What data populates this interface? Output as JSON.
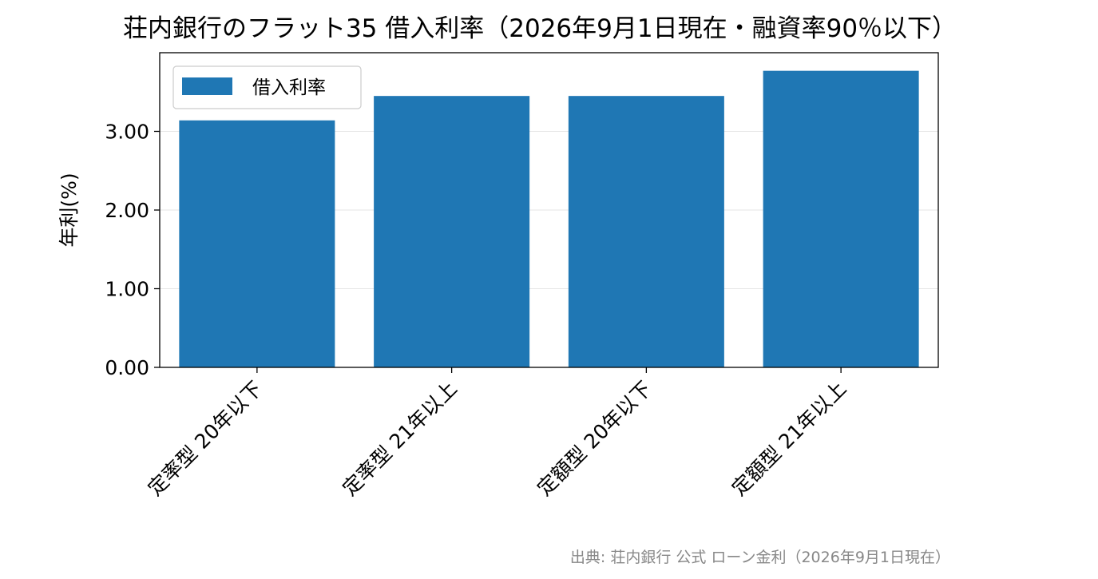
{
  "chart_data": {
    "type": "bar",
    "title": "荘内銀行のフラット35 借入利率（2026年9月1日現在・融資率90％以下）",
    "xlabel": "",
    "ylabel": "年利(%)",
    "categories": [
      "定率型 20年以下",
      "定率型 21年以上",
      "定額型 20年以下",
      "定額型 21年以上"
    ],
    "series": [
      {
        "name": "借入利率",
        "values": [
          3.14,
          3.45,
          3.45,
          3.77
        ]
      }
    ],
    "ylim": [
      0,
      4.0
    ],
    "yticks": [
      "0.00",
      "1.00",
      "2.00",
      "3.00"
    ],
    "grid": "horizontal",
    "legend_position": "top-left",
    "source": "出典: 荘内銀行 公式 ローン金利（2026年9月1日現在）",
    "colors": {
      "bar": "#1f77b4",
      "grid": "#e6e6e6",
      "axis": "#000000",
      "source": "#888888"
    }
  }
}
